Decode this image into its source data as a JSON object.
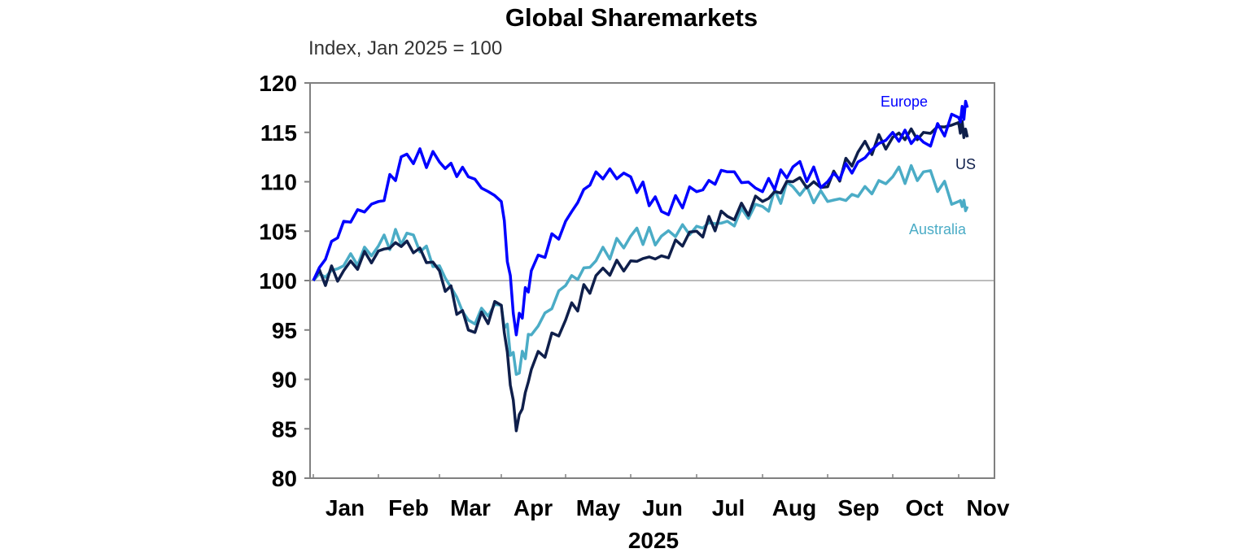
{
  "chart_data": {
    "type": "line",
    "title": "Global Sharemarkets",
    "subtitle": "Index, Jan 2025 = 100",
    "xlabel": "2025",
    "ylabel": "",
    "ylim": [
      80,
      120
    ],
    "yticks": [
      80,
      85,
      90,
      95,
      100,
      105,
      110,
      115,
      120
    ],
    "reference_line": 100,
    "grid": false,
    "legend_position": "inline labels",
    "x_tick_labels": [
      "Jan",
      "Feb",
      "Mar",
      "Apr",
      "May",
      "Jun",
      "Jul",
      "Aug",
      "Sep",
      "Oct",
      "Nov"
    ],
    "x": [
      "Jan-01",
      "Jan-15",
      "Feb-01",
      "Feb-15",
      "Mar-01",
      "Mar-15",
      "Apr-01",
      "Apr-08",
      "Apr-15",
      "May-01",
      "May-15",
      "Jun-01",
      "Jun-15",
      "Jul-01",
      "Jul-15",
      "Aug-01",
      "Aug-15",
      "Sep-01",
      "Sep-15",
      "Oct-01",
      "Oct-15",
      "Nov-01",
      "Nov-05"
    ],
    "series": [
      {
        "name": "Europe",
        "color": "#0000FF",
        "values": [
          100,
          106,
          108,
          112.8,
          112,
          110.5,
          108,
          94.5,
          101,
          106,
          111,
          110.5,
          107,
          109,
          111,
          109,
          111.5,
          110,
          112,
          115,
          114,
          116.5,
          117.5
        ]
      },
      {
        "name": "US",
        "color": "#0F1F4B",
        "values": [
          100,
          101,
          103,
          104,
          101,
          95,
          97.5,
          84.8,
          91,
          96,
          100.5,
          102,
          102.5,
          105,
          106.5,
          108,
          110,
          109.5,
          113,
          114.5,
          115,
          116,
          114.5
        ]
      },
      {
        "name": "Australia",
        "color": "#4BACC6",
        "values": [
          100,
          101.5,
          103.5,
          104.8,
          101.5,
          96,
          97.5,
          90.5,
          94.5,
          99.5,
          102,
          104.5,
          104.5,
          105.5,
          106,
          107.5,
          109.5,
          108,
          108.5,
          110.5,
          111,
          108,
          107.5
        ]
      }
    ]
  },
  "labels": {
    "europe": "Europe",
    "us": "US",
    "australia": "Australia"
  },
  "colors": {
    "europe": "#0000FF",
    "us": "#0F1F4B",
    "australia": "#4BACC6",
    "frame": "#808080",
    "reference": "#A6A6A6"
  }
}
